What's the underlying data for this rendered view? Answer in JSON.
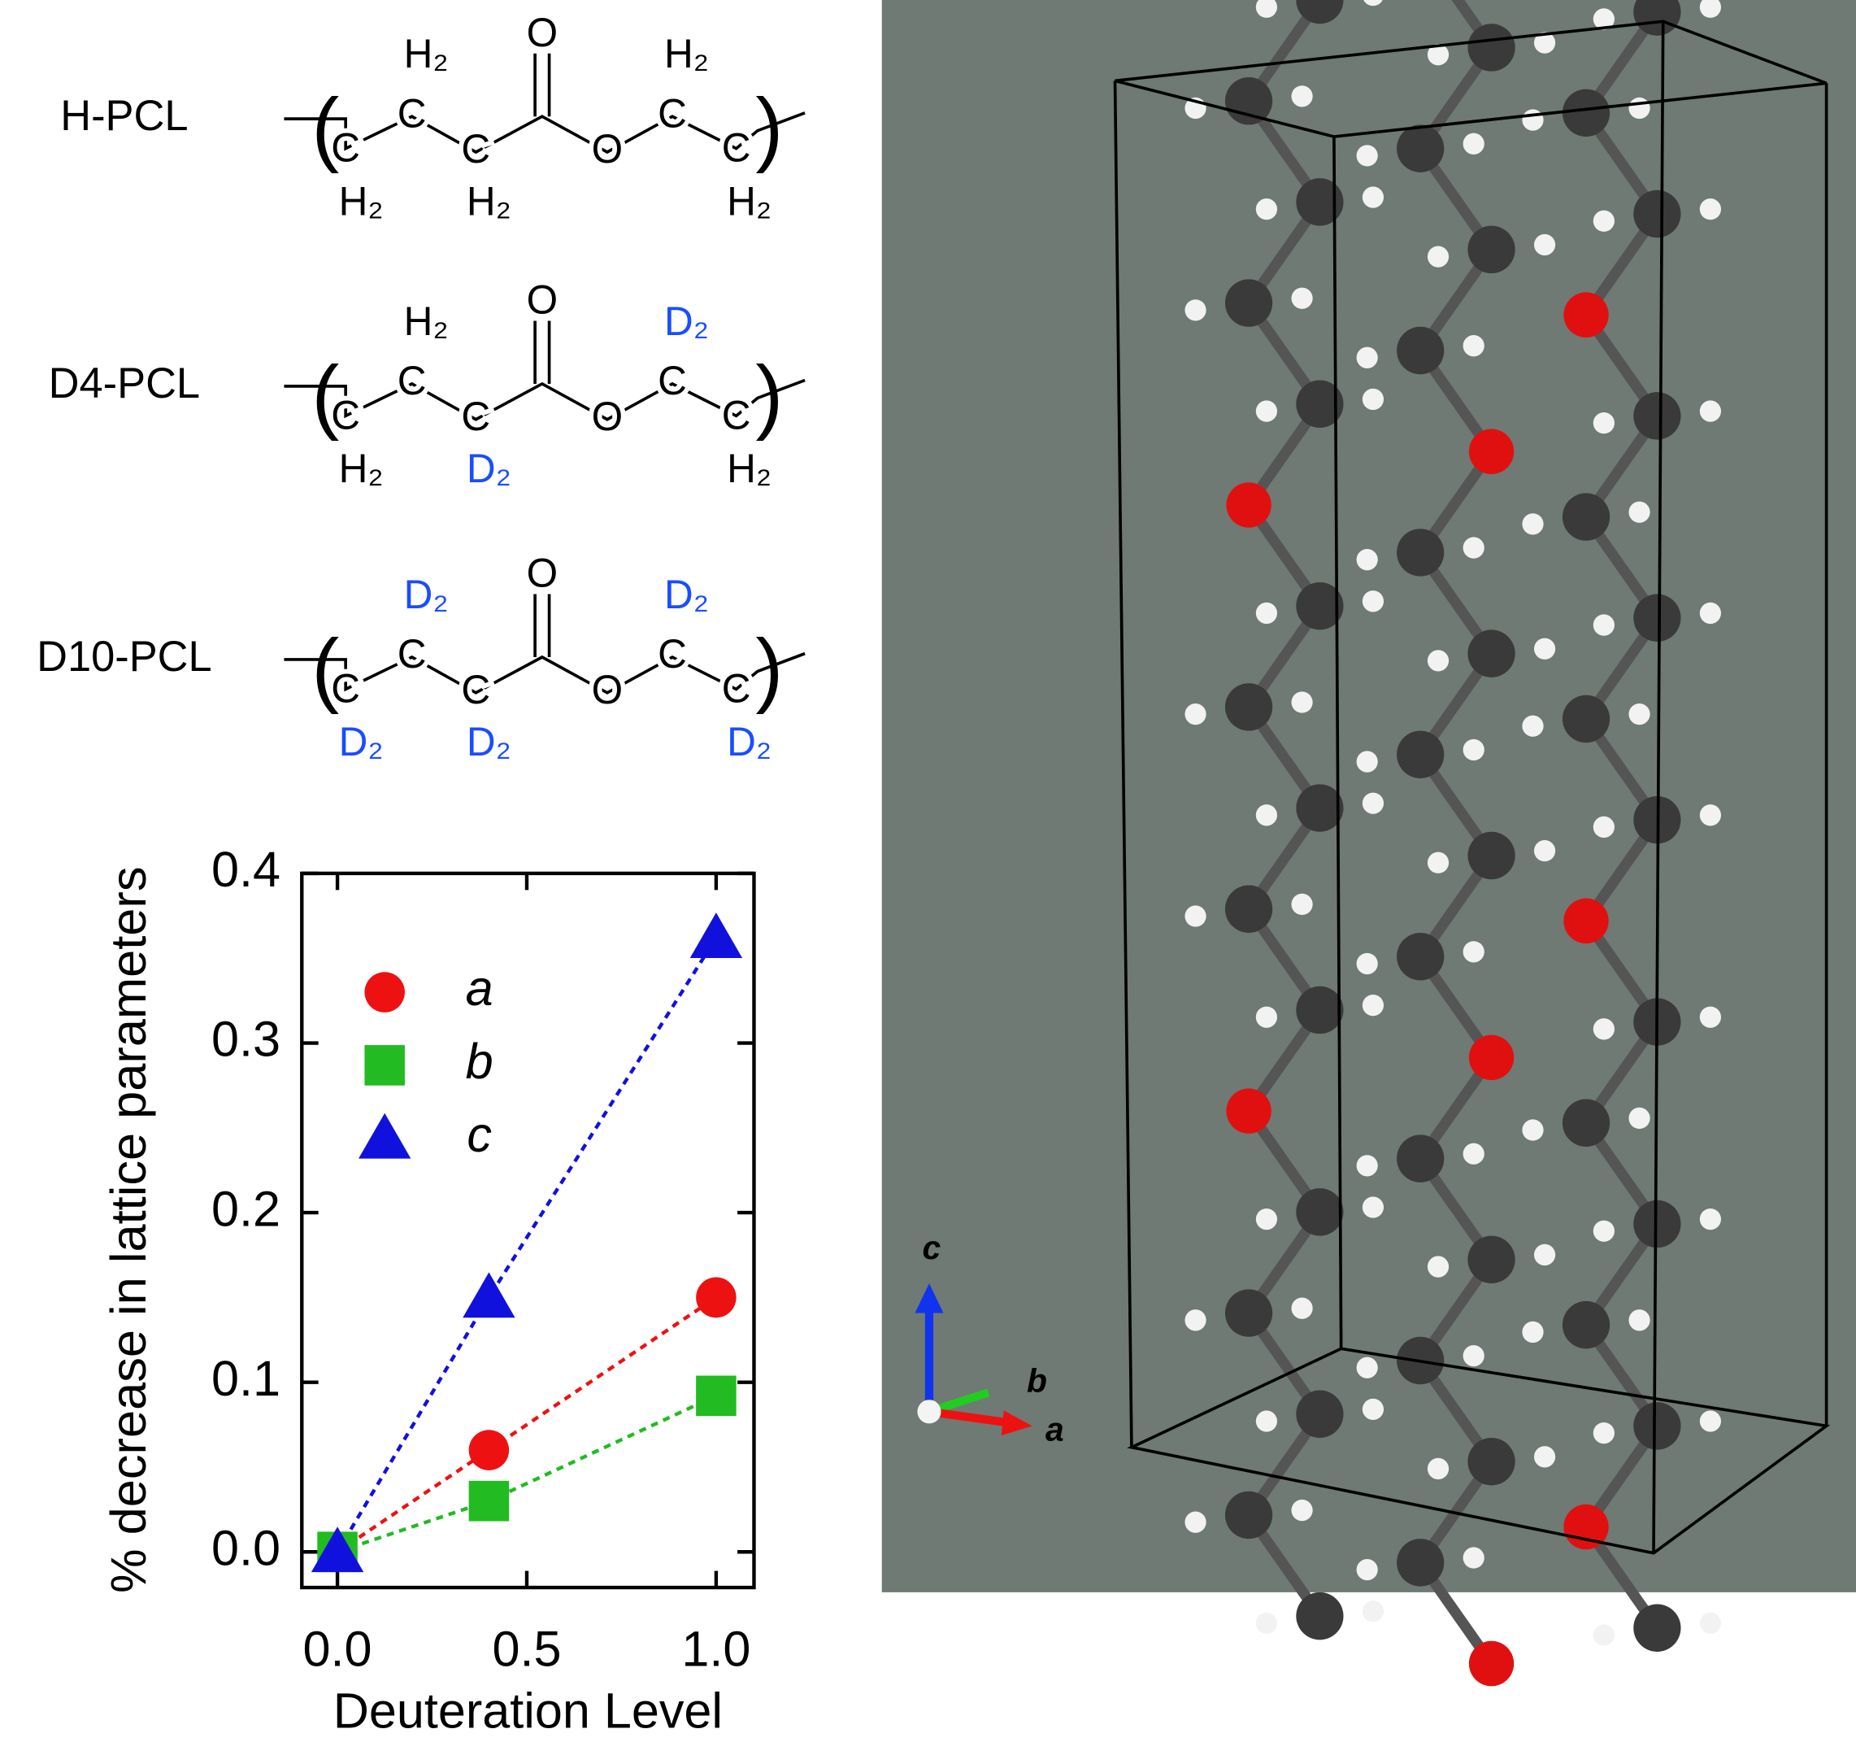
{
  "structures": [
    {
      "name": "H-PCL",
      "atoms": [
        "C",
        "C",
        "C",
        "O",
        "O",
        "C",
        "C"
      ],
      "groups": [
        "H₂",
        "H₂",
        "H₂",
        "H₂",
        "H₂"
      ]
    },
    {
      "name": "D4-PCL",
      "atoms": [
        "C",
        "C",
        "C",
        "O",
        "O",
        "C",
        "C"
      ],
      "groups": [
        "H₂",
        "H₂",
        "D₂",
        "D₂",
        "H₂"
      ]
    },
    {
      "name": "D10-PCL",
      "atoms": [
        "C",
        "C",
        "C",
        "O",
        "O",
        "C",
        "C"
      ],
      "groups": [
        "D₂",
        "D₂",
        "D₂",
        "D₂",
        "D₂"
      ]
    }
  ],
  "crystal_axes": [
    "c",
    "b",
    "a"
  ],
  "chart_data": {
    "type": "scatter",
    "x_label": "Deuteration Level",
    "y_label": "% decrease in lattice parameters",
    "x": [
      0,
      0.4,
      1.0
    ],
    "series": [
      {
        "name": "a",
        "color": "#ee1111",
        "marker": "circle",
        "values": [
          0,
          0.06,
          0.15
        ]
      },
      {
        "name": "b",
        "color": "#22bb22",
        "marker": "square",
        "values": [
          0,
          0.03,
          0.092
        ]
      },
      {
        "name": "c",
        "color": "#1111dd",
        "marker": "triangle",
        "values": [
          0,
          0.15,
          0.362
        ]
      }
    ],
    "xlim": [
      -0.094,
      1.1
    ],
    "ylim": [
      -0.021,
      0.4
    ],
    "xticks": [
      {
        "value": 0,
        "label": "0.0"
      },
      0.5,
      {
        "value": 1,
        "label": "1.0"
      }
    ],
    "yticks": [
      {
        "value": 0,
        "label": "0.0"
      },
      0.1,
      0.2,
      0.3,
      0.4
    ]
  }
}
